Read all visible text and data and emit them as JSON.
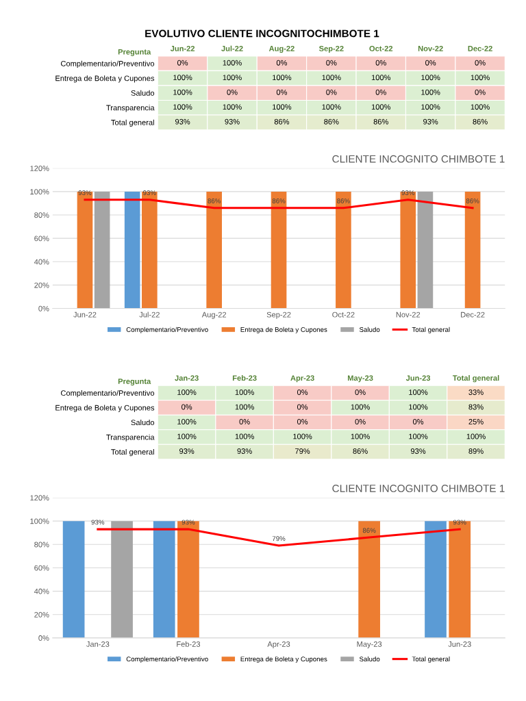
{
  "chart_data": [
    {
      "type": "heatmap",
      "title": "EVOLUTIVO CLIENTE INCOGNITOCHIMBOTE 1",
      "ylabel": "Pregunta",
      "categories": [
        "Jun-22",
        "Jul-22",
        "Aug-22",
        "Sep-22",
        "Oct-22",
        "Nov-22",
        "Dec-22"
      ],
      "y_categories": [
        "Complementario/Preventivo",
        "Entrega de Boleta y Cupones",
        "Saludo",
        "Transparencia",
        "Total general"
      ],
      "cells": [
        [
          0,
          100,
          0,
          0,
          0,
          0,
          0
        ],
        [
          100,
          100,
          100,
          100,
          100,
          100,
          100
        ],
        [
          100,
          0,
          0,
          0,
          0,
          100,
          0
        ],
        [
          100,
          100,
          100,
          100,
          100,
          100,
          100
        ],
        [
          93,
          93,
          86,
          86,
          86,
          93,
          86
        ]
      ],
      "cell_labels": [
        [
          "0%",
          "100%",
          "0%",
          "0%",
          "0%",
          "0%",
          "0%"
        ],
        [
          "100%",
          "100%",
          "100%",
          "100%",
          "100%",
          "100%",
          "100%"
        ],
        [
          "100%",
          "0%",
          "0%",
          "0%",
          "0%",
          "100%",
          "0%"
        ],
        [
          "100%",
          "100%",
          "100%",
          "100%",
          "100%",
          "100%",
          "100%"
        ],
        [
          "93%",
          "93%",
          "86%",
          "86%",
          "86%",
          "93%",
          "86%"
        ]
      ]
    },
    {
      "type": "bar",
      "title": "CLIENTE INCOGNITO CHIMBOTE 1",
      "categories": [
        "Jun-22",
        "Jul-22",
        "Aug-22",
        "Sep-22",
        "Oct-22",
        "Nov-22",
        "Dec-22"
      ],
      "series": [
        {
          "name": "Complementario/Preventivo",
          "color": "#5b9bd5",
          "values": [
            0,
            100,
            0,
            0,
            0,
            0,
            0
          ]
        },
        {
          "name": "Entrega de Boleta y Cupones",
          "color": "#ed7d31",
          "values": [
            100,
            100,
            100,
            100,
            100,
            100,
            100
          ]
        },
        {
          "name": "Saludo",
          "color": "#a5a5a5",
          "values": [
            100,
            0,
            0,
            0,
            0,
            100,
            0
          ]
        },
        {
          "name": "Total general",
          "type": "line",
          "color": "#ff0000",
          "values": [
            93,
            93,
            86,
            86,
            86,
            93,
            86
          ],
          "value_labels": [
            "93%",
            "93%",
            "86%",
            "86%",
            "86%",
            "93%",
            "86%"
          ]
        }
      ],
      "ylim": [
        0,
        120
      ],
      "yticks": [
        {
          "value": 0,
          "label": "0%"
        },
        {
          "value": 20,
          "label": "20%"
        },
        {
          "value": 40,
          "label": "40%"
        },
        {
          "value": 60,
          "label": "60%"
        },
        {
          "value": 80,
          "label": "80%"
        },
        {
          "value": 100,
          "label": "100%"
        },
        {
          "value": 120,
          "label": "120%"
        }
      ],
      "grid": "y",
      "legend": "bottom"
    },
    {
      "type": "heatmap",
      "ylabel": "Pregunta",
      "categories": [
        "Jan-23",
        "Feb-23",
        "Apr-23",
        "May-23",
        "Jun-23",
        "Total general"
      ],
      "y_categories": [
        "Complementario/Preventivo",
        "Entrega de Boleta y Cupones",
        "Saludo",
        "Transparencia",
        "Total general"
      ],
      "cells": [
        [
          100,
          100,
          0,
          0,
          100,
          33
        ],
        [
          0,
          100,
          0,
          100,
          100,
          83
        ],
        [
          100,
          0,
          0,
          0,
          0,
          25
        ],
        [
          100,
          100,
          100,
          100,
          100,
          100
        ],
        [
          93,
          93,
          79,
          86,
          93,
          89
        ]
      ],
      "cell_labels": [
        [
          "100%",
          "100%",
          "0%",
          "0%",
          "100%",
          "33%"
        ],
        [
          "0%",
          "100%",
          "0%",
          "100%",
          "100%",
          "83%"
        ],
        [
          "100%",
          "0%",
          "0%",
          "0%",
          "0%",
          "25%"
        ],
        [
          "100%",
          "100%",
          "100%",
          "100%",
          "100%",
          "100%"
        ],
        [
          "93%",
          "93%",
          "79%",
          "86%",
          "93%",
          "89%"
        ]
      ]
    },
    {
      "type": "bar",
      "title": "CLIENTE INCOGNITO CHIMBOTE 1",
      "categories": [
        "Jan-23",
        "Feb-23",
        "Apr-23",
        "May-23",
        "Jun-23"
      ],
      "series": [
        {
          "name": "Complementario/Preventivo",
          "color": "#5b9bd5",
          "values": [
            100,
            100,
            0,
            0,
            100
          ]
        },
        {
          "name": "Entrega de Boleta y Cupones",
          "color": "#ed7d31",
          "values": [
            0,
            100,
            0,
            100,
            100
          ]
        },
        {
          "name": "Saludo",
          "color": "#a5a5a5",
          "values": [
            100,
            0,
            0,
            0,
            0
          ]
        },
        {
          "name": "Total general",
          "type": "line",
          "color": "#ff0000",
          "values": [
            93,
            93,
            79,
            86,
            93
          ],
          "value_labels": [
            "93%",
            "93%",
            "79%",
            "86%",
            "93%"
          ]
        }
      ],
      "ylim": [
        0,
        120
      ],
      "yticks": [
        {
          "value": 0,
          "label": "0%"
        },
        {
          "value": 20,
          "label": "20%"
        },
        {
          "value": 40,
          "label": "40%"
        },
        {
          "value": 60,
          "label": "60%"
        },
        {
          "value": 80,
          "label": "80%"
        },
        {
          "value": 100,
          "label": "100%"
        },
        {
          "value": 120,
          "label": "120%"
        }
      ],
      "grid": "y",
      "legend": "bottom"
    }
  ]
}
